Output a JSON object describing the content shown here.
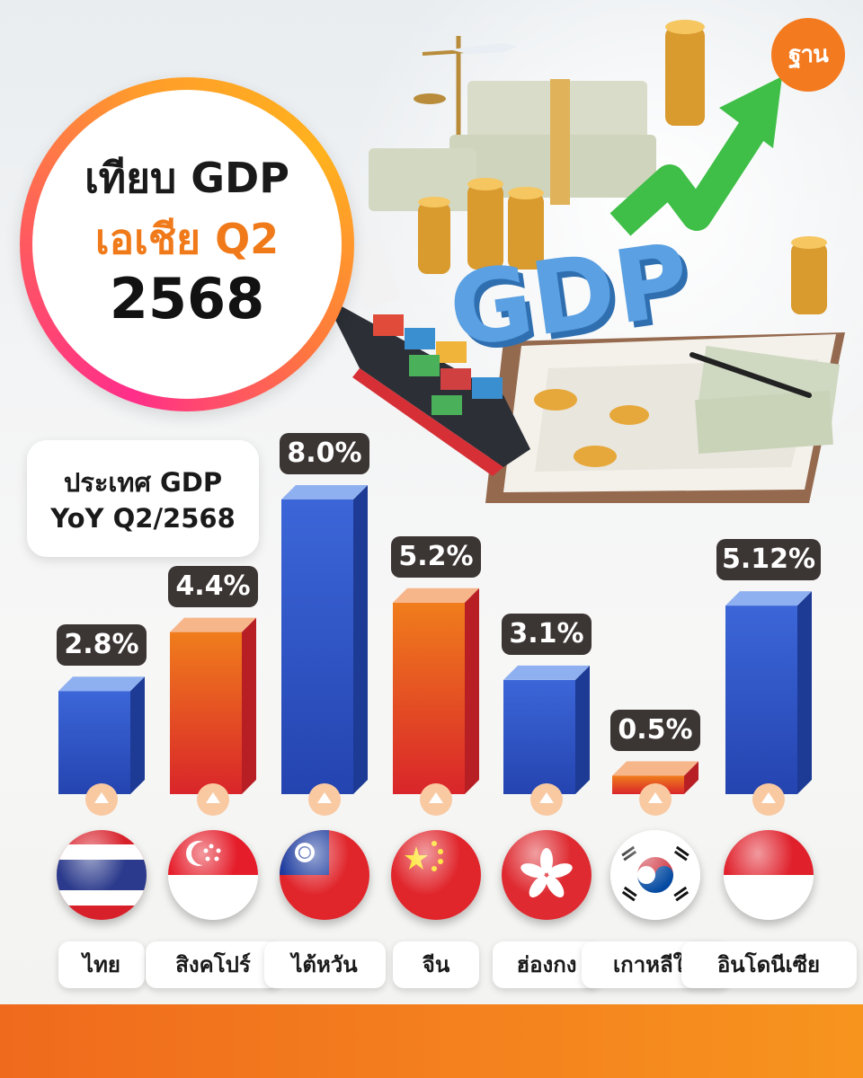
{
  "header": {
    "title_line1": "เทียบ GDP",
    "title_line2": "เอเชีย Q2",
    "title_line3": "2568",
    "logo_text": "ฐาน"
  },
  "hero": {
    "gdp_word": "GDP"
  },
  "legend": {
    "line1": "ประเทศ GDP",
    "line2": "YoY Q2/2568"
  },
  "colors": {
    "blue_bar": "#2f56c9",
    "orange_bar": "#f06a1a",
    "badge": "#3b3533",
    "accent": "#f47a20"
  },
  "chart_data": {
    "type": "bar",
    "categories": [
      "ไทย",
      "สิงคโปร์",
      "ไต้หวัน",
      "จีน",
      "ฮ่องกง",
      "เกาหลีใต้",
      "อินโดนีเซีย"
    ],
    "values": [
      2.8,
      4.4,
      8.0,
      5.2,
      3.1,
      0.5,
      5.12
    ],
    "value_labels": [
      "2.8%",
      "4.4%",
      "8.0%",
      "5.2%",
      "3.1%",
      "0.5%",
      "5.12%"
    ],
    "bar_colors": [
      "blue",
      "orange",
      "blue",
      "orange",
      "blue",
      "orange",
      "blue"
    ],
    "flags": [
      "thailand-flag-icon",
      "singapore-flag-icon",
      "taiwan-flag-icon",
      "china-flag-icon",
      "hongkong-flag-icon",
      "southkorea-flag-icon",
      "indonesia-flag-icon"
    ],
    "trend_icons": [
      "up-arrow-icon",
      "up-arrow-icon",
      "up-arrow-icon",
      "up-arrow-icon",
      "up-arrow-icon",
      "up-arrow-icon",
      "up-arrow-icon"
    ],
    "title": "ประเทศ GDP YoY Q2/2568",
    "unit": "%",
    "ylim": [
      0,
      8.0
    ],
    "grid": false,
    "legend": "top-left"
  }
}
